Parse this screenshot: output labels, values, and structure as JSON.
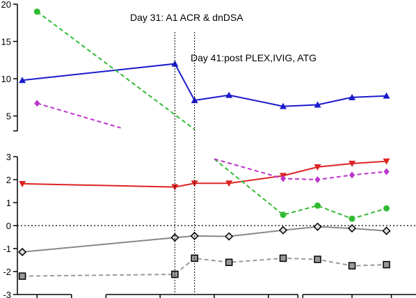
{
  "chart_data": {
    "type": "line",
    "title": "",
    "xlabel": "",
    "ylabel": "",
    "grid": false,
    "legend": "none",
    "panels": [
      {
        "id": "upper",
        "yticks": [
          "5",
          "10",
          "15",
          "20"
        ],
        "ylim": [
          3,
          20
        ],
        "series": [
          {
            "color": "#1a1acc",
            "style": "solid",
            "marker": "triangle-up",
            "x": [
              0,
              31,
              35,
              42,
              53,
              60,
              67,
              74
            ],
            "values": [
              9.8,
              12.0,
              7.1,
              7.8,
              6.3,
              6.5,
              7.5,
              7.7
            ]
          },
          {
            "color": "#33bb33",
            "style": "dashed",
            "marker": "circle",
            "x": [
              3,
              35
            ],
            "values": [
              19.0,
              3.2
            ]
          },
          {
            "color": "#bb33cc",
            "style": "dashed",
            "marker": "diamond",
            "x": [
              3,
              20
            ],
            "values": [
              6.7,
              3.4
            ]
          }
        ]
      },
      {
        "id": "lower",
        "yticks": [
          "-3",
          "-2",
          "-1",
          "0",
          "1",
          "2",
          "3"
        ],
        "ylim": [
          -3,
          3
        ],
        "reference_line": 0,
        "series": [
          {
            "color": "#dd2222",
            "style": "solid",
            "marker": "triangle-down",
            "x": [
              0,
              31,
              35,
              42,
              53,
              60,
              67,
              74
            ],
            "values": [
              1.82,
              1.68,
              1.84,
              1.84,
              2.17,
              2.55,
              2.7,
              2.8
            ]
          },
          {
            "color": "#33bb33",
            "style": "dashed",
            "marker": "circle",
            "x": [
              39,
              53,
              60,
              67,
              74
            ],
            "values": [
              2.9,
              0.47,
              0.87,
              0.3,
              0.75
            ]
          },
          {
            "color": "#bb33cc",
            "style": "dashed",
            "marker": "diamond",
            "x": [
              39,
              53,
              60,
              67,
              74
            ],
            "values": [
              2.9,
              2.05,
              2.0,
              2.2,
              2.35
            ]
          },
          {
            "color": "#888888",
            "style": "solid",
            "marker": "diamond-open",
            "x": [
              0,
              31,
              35,
              42,
              53,
              60,
              67,
              74
            ],
            "values": [
              -1.15,
              -0.52,
              -0.45,
              -0.47,
              -0.2,
              -0.05,
              -0.12,
              -0.23
            ]
          },
          {
            "color": "#999999",
            "style": "dashed",
            "marker": "square",
            "x": [
              0,
              31,
              35,
              42,
              53,
              60,
              67,
              74
            ],
            "values": [
              -2.2,
              -2.12,
              -1.42,
              -1.6,
              -1.42,
              -1.47,
              -1.75,
              -1.7
            ]
          }
        ]
      }
    ],
    "xlim": [
      -1,
      80
    ],
    "x_breaks": [
      [
        10,
        17
      ],
      [
        56,
        57
      ]
    ],
    "x_ticks": [
      3,
      10,
      17,
      28,
      39,
      50,
      56,
      57,
      67,
      75
    ],
    "events": [
      {
        "x": 31,
        "label": "Day 31: A1 ACR & dnDSA"
      },
      {
        "x": 35,
        "label": "Day 41:post PLEX,IVIG, ATG"
      }
    ]
  }
}
